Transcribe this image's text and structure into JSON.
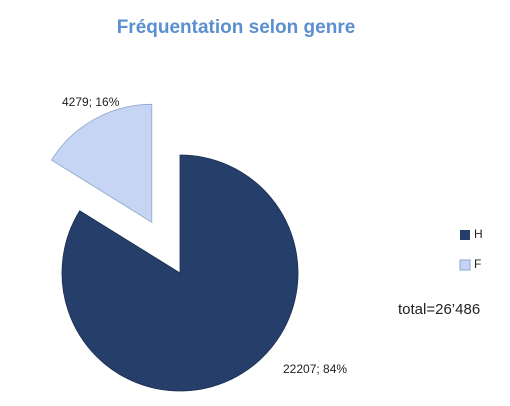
{
  "chart_data": {
    "type": "pie",
    "title": "Fréquentation selon genre",
    "categories": [
      "H",
      "F"
    ],
    "values": [
      22207,
      4279
    ],
    "value_labels": [
      "22207; 84%",
      "4279; 16%"
    ],
    "colors": [
      "#253f6a",
      "#c5d5f3"
    ],
    "annotation": "total=26’486"
  }
}
